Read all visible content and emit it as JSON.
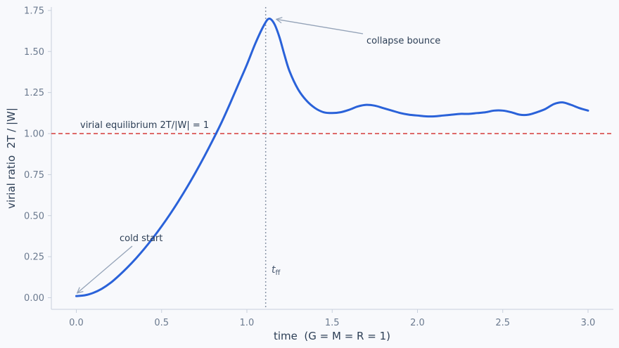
{
  "chart_data": {
    "type": "line",
    "title": "",
    "xlabel": "time  (G = M = R = 1)",
    "ylabel": "virial ratio  2T / |W|",
    "xlim": [
      -0.15,
      3.15
    ],
    "ylim": [
      -0.07,
      1.78
    ],
    "x_ticks": [
      0.0,
      0.5,
      1.0,
      1.5,
      2.0,
      2.5,
      3.0
    ],
    "x_tick_labels": [
      "0.0",
      "0.5",
      "1.0",
      "1.5",
      "2.0",
      "2.5",
      "3.0"
    ],
    "y_ticks": [
      0.0,
      0.25,
      0.5,
      0.75,
      1.0,
      1.25,
      1.5,
      1.75
    ],
    "y_tick_labels": [
      "0.00",
      "0.25",
      "0.50",
      "0.75",
      "1.00",
      "1.25",
      "1.50",
      "1.75"
    ],
    "grid": false,
    "series": [
      {
        "color": "#2a62d9",
        "x": [
          0.0,
          0.05,
          0.1,
          0.15,
          0.2,
          0.25,
          0.3,
          0.35,
          0.4,
          0.45,
          0.5,
          0.55,
          0.6,
          0.65,
          0.7,
          0.75,
          0.8,
          0.85,
          0.9,
          0.95,
          1.0,
          1.05,
          1.1,
          1.13,
          1.16,
          1.19,
          1.22,
          1.25,
          1.3,
          1.35,
          1.4,
          1.45,
          1.5,
          1.55,
          1.6,
          1.65,
          1.7,
          1.75,
          1.8,
          1.85,
          1.9,
          1.95,
          2.0,
          2.05,
          2.1,
          2.15,
          2.2,
          2.25,
          2.3,
          2.35,
          2.4,
          2.45,
          2.5,
          2.55,
          2.6,
          2.65,
          2.7,
          2.75,
          2.8,
          2.85,
          2.9,
          2.95,
          3.0
        ],
        "y": [
          0.01,
          0.015,
          0.03,
          0.055,
          0.09,
          0.135,
          0.185,
          0.24,
          0.3,
          0.365,
          0.435,
          0.51,
          0.59,
          0.675,
          0.765,
          0.86,
          0.96,
          1.065,
          1.18,
          1.3,
          1.42,
          1.55,
          1.66,
          1.7,
          1.67,
          1.59,
          1.48,
          1.38,
          1.27,
          1.2,
          1.155,
          1.13,
          1.125,
          1.13,
          1.145,
          1.165,
          1.175,
          1.17,
          1.155,
          1.14,
          1.125,
          1.115,
          1.11,
          1.105,
          1.105,
          1.11,
          1.115,
          1.12,
          1.12,
          1.125,
          1.13,
          1.14,
          1.14,
          1.13,
          1.115,
          1.115,
          1.13,
          1.15,
          1.18,
          1.19,
          1.175,
          1.155,
          1.14
        ]
      }
    ],
    "reference_lines": {
      "virial_equilibrium_y": 1.0,
      "free_fall_time_x": 1.11,
      "virial_color": "#d63a3a",
      "tff_color": "#8a96a8"
    },
    "annotations": {
      "virial_label": "virial equilibrium  2T/|W| = 1",
      "collapse_label": "collapse bounce",
      "collapse_target": [
        1.16,
        1.7
      ],
      "cold_label": "cold start",
      "cold_target": [
        0.0,
        0.01
      ],
      "tff_label_main": "t",
      "tff_label_sub": "ff"
    }
  }
}
